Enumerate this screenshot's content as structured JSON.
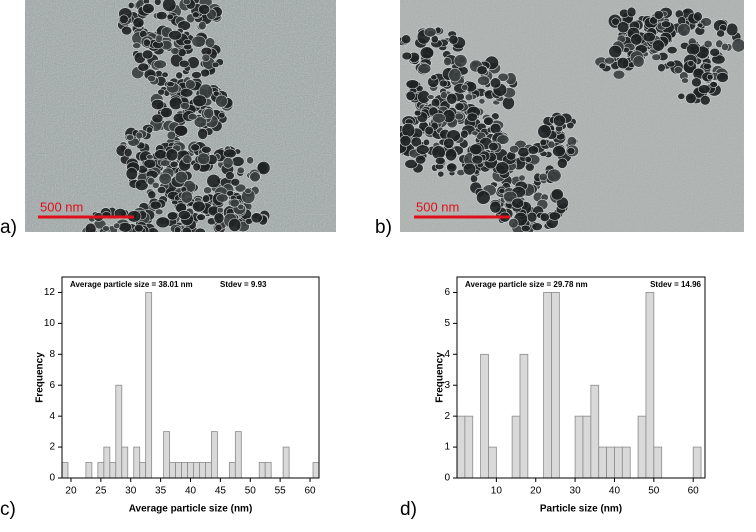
{
  "images": [
    {
      "label": "a)",
      "scale_bar": "500 nm"
    },
    {
      "label": "b)",
      "scale_bar": "500 nm"
    }
  ],
  "chart_data": [
    {
      "type": "histogram",
      "panel_label": "c)",
      "annotations": [
        "Average particle size = 38.01 nm",
        "Stdev = 9.93"
      ],
      "xlabel": "Average particle size (nm)",
      "ylabel": "Frequency",
      "color": "#d9d9d9",
      "bins": [
        18.5,
        19.5,
        20.5,
        21.5,
        22.5,
        23.5,
        24.5,
        25.5,
        26.5,
        27.5,
        28.5,
        29.5,
        30.5,
        31.5,
        32.5,
        33.5,
        34.5,
        35.5,
        36.5,
        37.5,
        38.5,
        39.5,
        40.5,
        41.5,
        42.5,
        43.5,
        44.5,
        45.5,
        46.5,
        47.5,
        48.5,
        49.5,
        50.5,
        51.5,
        52.5,
        53.5,
        54.5,
        55.5,
        56.5,
        57.5,
        58.5,
        59.5,
        60.5,
        61.5
      ],
      "counts": [
        1,
        0,
        0,
        0,
        1,
        0,
        1,
        2,
        1,
        6,
        2,
        0,
        2,
        1,
        12,
        0,
        0,
        3,
        1,
        1,
        1,
        1,
        1,
        1,
        1,
        3,
        0,
        0,
        1,
        3,
        0,
        0,
        0,
        1,
        1,
        0,
        0,
        2,
        0,
        0,
        0,
        0,
        1
      ],
      "xlim": [
        18.5,
        61.5
      ],
      "ylim": [
        0,
        13
      ],
      "xticks": [
        20,
        25,
        30,
        35,
        40,
        45,
        50,
        55,
        60
      ],
      "yticks": [
        0,
        2,
        4,
        6,
        8,
        10,
        12
      ]
    },
    {
      "type": "histogram",
      "panel_label": "d)",
      "annotations": [
        "Average particle size = 29.78 nm",
        "Stdev = 14.96"
      ],
      "xlabel": "Particle size (nm)",
      "ylabel": "Frequency",
      "color": "#d9d9d9",
      "bins": [
        0,
        2,
        4,
        6,
        8,
        10,
        12,
        14,
        16,
        18,
        20,
        22,
        24,
        26,
        28,
        30,
        32,
        34,
        36,
        38,
        40,
        42,
        44,
        46,
        48,
        50,
        52,
        54,
        56,
        58,
        60,
        62
      ],
      "counts": [
        2,
        2,
        0,
        4,
        1,
        0,
        0,
        2,
        4,
        0,
        0,
        6,
        6,
        0,
        0,
        2,
        2,
        3,
        1,
        1,
        1,
        1,
        0,
        2,
        6,
        1,
        0,
        0,
        0,
        0,
        1
      ],
      "xlim": [
        0,
        63
      ],
      "ylim": [
        0,
        6.5
      ],
      "xticks": [
        10,
        20,
        30,
        40,
        50,
        60
      ],
      "yticks": [
        0,
        1,
        2,
        3,
        4,
        5,
        6
      ]
    }
  ]
}
